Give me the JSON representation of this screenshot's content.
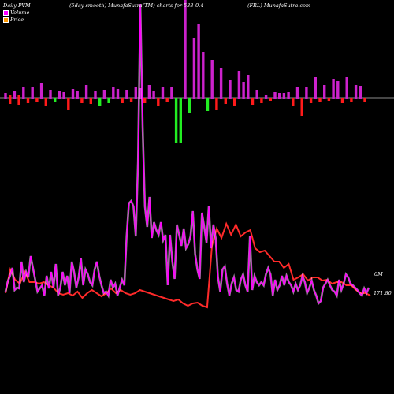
{
  "header": {
    "left": "Daily PVM",
    "center_a": "(5day smooth) MunafaSutra(TM) charts for 538",
    "center_b": "0.4",
    "right": "(FRL) MunafaSutra.com"
  },
  "legend": [
    {
      "label": "Volume",
      "color": "#ff00ff"
    },
    {
      "label": "Price",
      "color": "#ff9900"
    }
  ],
  "colors": {
    "background": "#000000",
    "price_line": "#ff2a2a",
    "volume_line": "#ff00ff",
    "volume_outline": "#ffffff",
    "bar_up": "#cc22cc",
    "bar_down": "#ff1a1a",
    "bar_green": "#22ee22",
    "baseline": "#bbbbbb"
  },
  "chart_data": {
    "type": "line",
    "value_labels": {
      "volume_last": "0M",
      "price_last": "171.80"
    },
    "bars": [
      {
        "type": "up",
        "top": 118,
        "bottom": 126
      },
      {
        "type": "down",
        "top": 120,
        "bottom": 132
      },
      {
        "type": "up",
        "top": 116,
        "bottom": 126
      },
      {
        "type": "down",
        "top": 120,
        "bottom": 133
      },
      {
        "type": "up",
        "top": 111,
        "bottom": 126
      },
      {
        "type": "down",
        "top": 124,
        "bottom": 131
      },
      {
        "type": "up",
        "top": 111,
        "bottom": 126
      },
      {
        "type": "down",
        "top": 124,
        "bottom": 129
      },
      {
        "type": "up",
        "top": 105,
        "bottom": 126
      },
      {
        "type": "down",
        "top": 124,
        "bottom": 134
      },
      {
        "type": "up",
        "top": 114,
        "bottom": 126
      },
      {
        "type": "green",
        "top": 124,
        "bottom": 129
      },
      {
        "type": "up",
        "top": 116,
        "bottom": 126
      },
      {
        "type": "up",
        "top": 117,
        "bottom": 126
      },
      {
        "type": "down",
        "top": 124,
        "bottom": 139
      },
      {
        "type": "up",
        "top": 113,
        "bottom": 126
      },
      {
        "type": "up",
        "top": 115,
        "bottom": 126
      },
      {
        "type": "down",
        "top": 124,
        "bottom": 131
      },
      {
        "type": "up",
        "top": 108,
        "bottom": 126
      },
      {
        "type": "down",
        "top": 124,
        "bottom": 132
      },
      {
        "type": "up",
        "top": 116,
        "bottom": 126
      },
      {
        "type": "green",
        "top": 124,
        "bottom": 134
      },
      {
        "type": "up",
        "top": 114,
        "bottom": 126
      },
      {
        "type": "green",
        "top": 124,
        "bottom": 131
      },
      {
        "type": "up",
        "top": 110,
        "bottom": 126
      },
      {
        "type": "up",
        "top": 113,
        "bottom": 126
      },
      {
        "type": "down",
        "top": 124,
        "bottom": 131
      },
      {
        "type": "up",
        "top": 114,
        "bottom": 126
      },
      {
        "type": "down",
        "top": 124,
        "bottom": 130
      },
      {
        "type": "up",
        "top": 110,
        "bottom": 126
      },
      {
        "type": "up",
        "top": 112,
        "bottom": 126
      },
      {
        "type": "down",
        "top": 124,
        "bottom": 131
      },
      {
        "type": "up",
        "top": 108,
        "bottom": 126
      },
      {
        "type": "up",
        "top": 116,
        "bottom": 126
      },
      {
        "type": "down",
        "top": 124,
        "bottom": 135
      },
      {
        "type": "up",
        "top": 111,
        "bottom": 126
      },
      {
        "type": "down",
        "top": 124,
        "bottom": 130
      },
      {
        "type": "up",
        "top": 111,
        "bottom": 126
      },
      {
        "type": "green",
        "top": 124,
        "bottom": 181
      },
      {
        "type": "green",
        "top": 124,
        "bottom": 181
      },
      {
        "type": "up",
        "top": 0,
        "bottom": 126
      },
      {
        "type": "green",
        "top": 124,
        "bottom": 144
      },
      {
        "type": "up",
        "top": 48,
        "bottom": 126
      },
      {
        "type": "up",
        "top": 30,
        "bottom": 126
      },
      {
        "type": "up",
        "top": 66,
        "bottom": 126
      },
      {
        "type": "green",
        "top": 124,
        "bottom": 141
      },
      {
        "type": "up",
        "top": 76,
        "bottom": 126
      },
      {
        "type": "down",
        "top": 124,
        "bottom": 139
      },
      {
        "type": "up",
        "top": 86,
        "bottom": 126
      },
      {
        "type": "down",
        "top": 124,
        "bottom": 132
      },
      {
        "type": "up",
        "top": 102,
        "bottom": 126
      },
      {
        "type": "down",
        "top": 124,
        "bottom": 134
      },
      {
        "type": "up",
        "top": 90,
        "bottom": 126
      },
      {
        "type": "up",
        "top": 104,
        "bottom": 126
      },
      {
        "type": "up",
        "top": 95,
        "bottom": 126
      },
      {
        "type": "down",
        "top": 124,
        "bottom": 133
      },
      {
        "type": "up",
        "top": 114,
        "bottom": 126
      },
      {
        "type": "down",
        "top": 124,
        "bottom": 131
      },
      {
        "type": "up",
        "top": 120,
        "bottom": 126
      },
      {
        "type": "down",
        "top": 124,
        "bottom": 128
      },
      {
        "type": "up",
        "top": 117,
        "bottom": 126
      },
      {
        "type": "up",
        "top": 118,
        "bottom": 126
      },
      {
        "type": "up",
        "top": 118,
        "bottom": 126
      },
      {
        "type": "up",
        "top": 117,
        "bottom": 126
      },
      {
        "type": "down",
        "top": 124,
        "bottom": 134
      },
      {
        "type": "up",
        "top": 111,
        "bottom": 126
      },
      {
        "type": "down",
        "top": 124,
        "bottom": 147
      },
      {
        "type": "up",
        "top": 111,
        "bottom": 126
      },
      {
        "type": "down",
        "top": 124,
        "bottom": 131
      },
      {
        "type": "up",
        "top": 98,
        "bottom": 126
      },
      {
        "type": "down",
        "top": 124,
        "bottom": 130
      },
      {
        "type": "up",
        "top": 108,
        "bottom": 126
      },
      {
        "type": "down",
        "top": 124,
        "bottom": 128
      },
      {
        "type": "up",
        "top": 100,
        "bottom": 126
      },
      {
        "type": "up",
        "top": 103,
        "bottom": 126
      },
      {
        "type": "down",
        "top": 124,
        "bottom": 131
      },
      {
        "type": "up",
        "top": 98,
        "bottom": 126
      },
      {
        "type": "down",
        "top": 124,
        "bottom": 129
      },
      {
        "type": "up",
        "top": 108,
        "bottom": 126
      },
      {
        "type": "up",
        "top": 109,
        "bottom": 126
      },
      {
        "type": "down",
        "top": 124,
        "bottom": 130
      }
    ],
    "price": [
      372,
      342,
      355,
      360,
      345,
      358,
      358,
      360,
      358,
      362,
      365,
      372,
      374,
      372,
      375,
      370,
      378,
      372,
      368,
      372,
      376,
      372,
      366,
      372,
      368,
      372,
      374,
      372,
      368,
      370,
      372,
      374,
      376,
      378,
      380,
      382,
      380,
      385,
      388,
      385,
      384,
      388,
      390,
      312,
      290,
      302,
      284,
      298,
      285,
      300,
      295,
      292,
      315,
      320,
      318,
      325,
      332,
      332,
      340,
      335,
      355,
      352,
      348,
      356,
      352,
      352,
      356,
      355,
      360,
      358,
      358,
      362,
      362,
      368,
      372,
      372,
      375
    ],
    "volume": [
      370,
      357,
      350,
      340,
      368,
      365,
      366,
      332,
      358,
      345,
      352,
      325,
      340,
      355,
      370,
      366,
      362,
      375,
      350,
      366,
      345,
      365,
      335,
      375,
      365,
      345,
      362,
      350,
      372,
      332,
      345,
      365,
      352,
      328,
      362,
      342,
      348,
      358,
      362,
      342,
      332,
      350,
      362,
      372,
      370,
      375,
      355,
      365,
      360,
      375,
      365,
      355,
      362,
      300,
      258,
      255,
      262,
      300,
      205,
      5,
      160,
      262,
      288,
      250,
      302,
      282,
      292,
      298,
      282,
      305,
      298,
      362,
      298,
      332,
      354,
      285,
      298,
      312,
      290,
      315,
      310,
      300,
      268,
      322,
      342,
      354,
      270,
      288,
      308,
      262,
      315,
      285,
      302,
      352,
      370,
      342,
      338,
      360,
      375,
      360,
      352,
      368,
      370,
      355,
      348,
      362,
      370,
      300,
      368,
      350,
      358,
      362,
      358,
      362,
      348,
      340,
      348,
      375,
      355,
      368,
      362,
      350,
      362,
      350,
      358,
      362,
      370,
      360,
      368,
      362,
      350,
      358,
      372,
      365,
      356,
      368,
      375,
      385,
      382,
      365,
      360,
      355,
      362,
      368,
      370,
      375,
      355,
      368,
      360,
      348,
      352,
      360,
      362,
      365,
      368,
      372,
      375,
      366,
      372,
      365
    ]
  }
}
